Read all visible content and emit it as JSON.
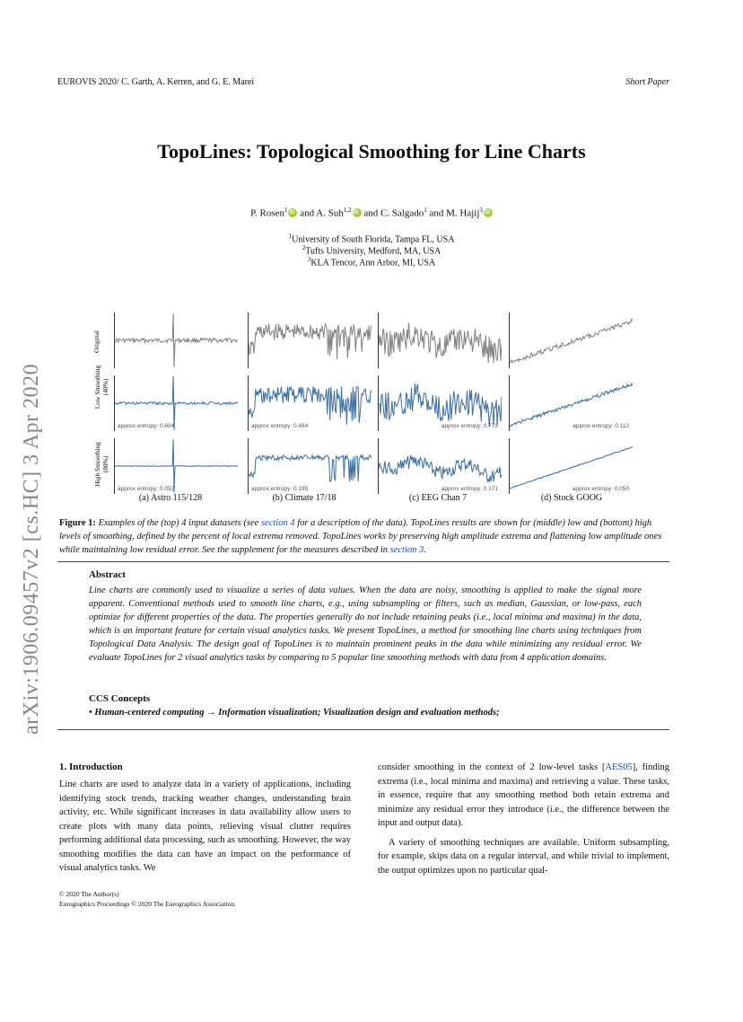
{
  "header": {
    "left": "EUROVIS 2020/ C. Garth, A. Kerren, and G. E. Marei",
    "right": "Short Paper"
  },
  "title": "TopoLines: Topological Smoothing for Line Charts",
  "authors": [
    {
      "name": "P. Rosen",
      "sup": "1"
    },
    {
      "name": "A. Suh",
      "sup": "1,2"
    },
    {
      "name": "C. Salgado",
      "sup": "1"
    },
    {
      "name": "M. Hajij",
      "sup": "3"
    }
  ],
  "authors_joiner": "and",
  "affiliations": [
    {
      "sup": "1",
      "text": "University of South Florida, Tampa FL, USA"
    },
    {
      "sup": "2",
      "text": "Tufts University, Medford, MA, USA"
    },
    {
      "sup": "3",
      "text": "KLA Tencor, Ann Arbor, MI, USA"
    }
  ],
  "arxiv_stamp": "arXiv:1906.09457v2  [cs.HC]  3 Apr 2020",
  "figure": {
    "row_labels": [
      {
        "line1": "Original",
        "line2": ""
      },
      {
        "line1": "Low Smoothing",
        "line2": "(40%)"
      },
      {
        "line1": "High Smoothing",
        "line2": "(80%)"
      }
    ],
    "columns": [
      {
        "label": "(a) Astro 115/128",
        "entropy_low": "approx entropy: 0.604",
        "entropy_high": "approx entropy: 0.052"
      },
      {
        "label": "(b) Climate 17/18",
        "entropy_low": "approx entropy: 0.484",
        "entropy_high": "approx entropy: 0.195"
      },
      {
        "label": "(c) EEG Chan 7",
        "entropy_low": "approx entropy: 0.772",
        "entropy_high": "approx entropy: 0.171"
      },
      {
        "label": "(d) Stock GOOG",
        "entropy_low": "approx entropy: 0.112",
        "entropy_high": "approx entropy: 0.050"
      }
    ],
    "colors": {
      "original": "#808080",
      "smoothed": "#3a6ea5"
    }
  },
  "caption": {
    "label": "Figure 1:",
    "part1": "Examples of the (top) 4 input datasets (see",
    "link1": "section 4",
    "part2": "for a description of the data). TopoLines results are shown for (middle) low and (bottom) high levels of smoothing, defined by the percent of local extrema removed. TopoLines works by preserving high amplitude extrema and flattening low amplitude ones while maintaining low residual error. See the supplement for the measures described in",
    "link2": "section 3",
    "part3": "."
  },
  "abstract": {
    "heading": "Abstract",
    "text": "Line charts are commonly used to visualize a series of data values. When the data are noisy, smoothing is applied to make the signal more apparent. Conventional methods used to smooth line charts, e.g., using subsampling or filters, such as median, Gaussian, or low-pass, each optimize for different properties of the data. The properties generally do not include retaining peaks (i.e., local minima and maxima) in the data, which is an important feature for certain visual analytics tasks. We present TopoLines, a method for smoothing line charts using techniques from Topological Data Analysis. The design goal of TopoLines is to maintain prominent peaks in the data while minimizing any residual error. We evaluate TopoLines for 2 visual analytics tasks by comparing to 5 popular line smoothing methods with data from 4 application domains."
  },
  "ccs": {
    "heading": "CCS Concepts",
    "bullet": "•",
    "main": "Human-centered computing",
    "arrow": "→",
    "rest": "Information visualization; Visualization design and evaluation methods;"
  },
  "intro": {
    "heading": "1. Introduction",
    "col1": "Line charts are used to analyze data in a variety of applications, including identifying stock trends, tracking weather changes, understanding brain activity, etc. While significant increases in data availability allow users to create plots with many data points, relieving visual clutter requires performing additional data processing, such as smoothing. However, the way smoothing modifies the data can have an impact on the performance of visual analytics tasks. We",
    "col2_p1a": "consider smoothing in the context of 2 low-level tasks [",
    "col2_cite": "AES05",
    "col2_p1b": "], finding extrema (i.e., local minima and maxima) and retrieving a value. These tasks, in essence, require that any smoothing method both retain extrema and minimize any residual error they introduce (i.e., the difference between the input and output data).",
    "col2_p2": "A variety of smoothing techniques are available. Uniform subsampling, for example, skips data on a regular interval, and while trivial to implement, the output optimizes upon no particular qual-"
  },
  "footer": {
    "line1": "© 2020 The Author(s)",
    "line2": "Eurographics Proceedings © 2020 The Eurographics Association."
  }
}
